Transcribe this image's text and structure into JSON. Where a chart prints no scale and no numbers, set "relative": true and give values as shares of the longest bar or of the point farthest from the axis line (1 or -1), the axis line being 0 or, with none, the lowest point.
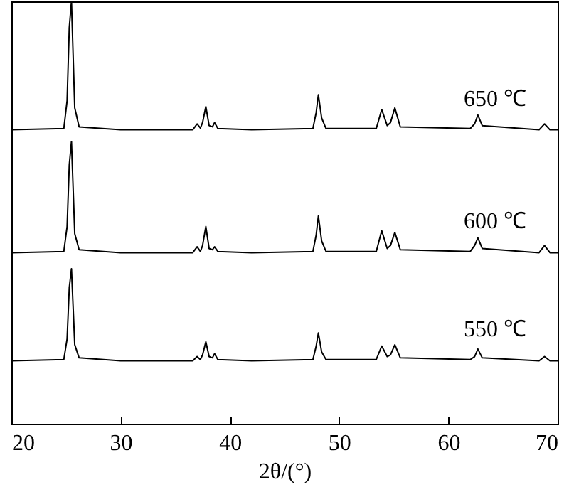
{
  "chart_data": {
    "type": "line",
    "xlabel": "2θ/(°)",
    "relative": true,
    "xlim": [
      20,
      70
    ],
    "xticks": [
      20,
      30,
      40,
      50,
      60,
      70
    ],
    "tick_labels": "x",
    "grid": false,
    "x": [
      20,
      24.8,
      25.1,
      25.3,
      25.5,
      25.8,
      26.2,
      30,
      36.6,
      37.0,
      37.3,
      37.5,
      37.8,
      38.1,
      38.4,
      38.6,
      38.9,
      42,
      47.6,
      47.9,
      48.1,
      48.4,
      48.8,
      53.4,
      53.9,
      54.4,
      54.7,
      55.1,
      55.6,
      62.0,
      62.4,
      62.7,
      63.1,
      68.3,
      68.8,
      69.3,
      70
    ],
    "series": [
      {
        "name": "650 ℃",
        "color": "#000000",
        "values": [
          0.696,
          0.699,
          0.765,
          0.938,
          1.0,
          0.748,
          0.703,
          0.696,
          0.696,
          0.71,
          0.7,
          0.713,
          0.751,
          0.706,
          0.703,
          0.713,
          0.699,
          0.696,
          0.699,
          0.737,
          0.779,
          0.724,
          0.699,
          0.699,
          0.744,
          0.706,
          0.713,
          0.748,
          0.703,
          0.699,
          0.71,
          0.731,
          0.706,
          0.696,
          0.71,
          0.696,
          0.696
        ]
      },
      {
        "name": "600 ℃",
        "color": "#000000",
        "values": [
          0.405,
          0.408,
          0.467,
          0.613,
          0.668,
          0.45,
          0.412,
          0.405,
          0.405,
          0.419,
          0.408,
          0.422,
          0.467,
          0.415,
          0.412,
          0.419,
          0.408,
          0.405,
          0.408,
          0.447,
          0.492,
          0.433,
          0.408,
          0.408,
          0.457,
          0.415,
          0.422,
          0.453,
          0.412,
          0.408,
          0.422,
          0.44,
          0.415,
          0.405,
          0.422,
          0.405,
          0.405
        ]
      },
      {
        "name": "550 ℃",
        "color": "#000000",
        "values": [
          0.149,
          0.152,
          0.201,
          0.322,
          0.367,
          0.187,
          0.156,
          0.149,
          0.149,
          0.159,
          0.152,
          0.163,
          0.194,
          0.159,
          0.156,
          0.166,
          0.152,
          0.149,
          0.152,
          0.184,
          0.215,
          0.17,
          0.152,
          0.152,
          0.184,
          0.159,
          0.163,
          0.187,
          0.156,
          0.152,
          0.159,
          0.177,
          0.156,
          0.149,
          0.159,
          0.149,
          0.149
        ]
      }
    ]
  }
}
